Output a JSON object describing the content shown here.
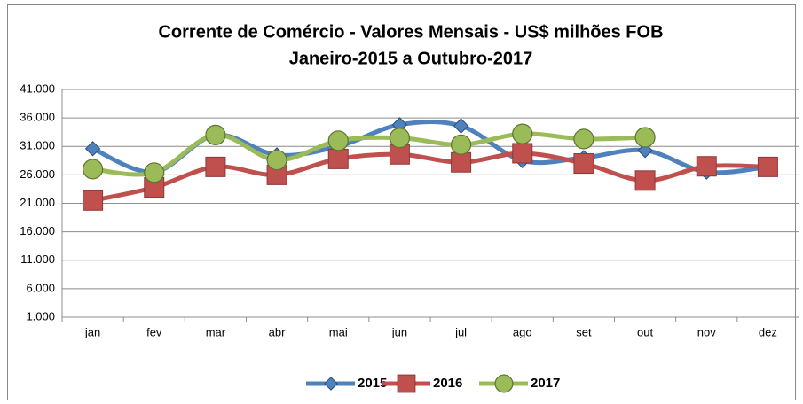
{
  "chart_data": {
    "type": "line",
    "title": "Corrente de Comércio - Valores Mensais -  US$ milhões FOB",
    "subtitle": "Janeiro-2015 a Outubro-2017",
    "categories": [
      "jan",
      "fev",
      "mar",
      "abr",
      "mai",
      "jun",
      "jul",
      "ago",
      "set",
      "out",
      "nov",
      "dez"
    ],
    "series": [
      {
        "name": "2015",
        "color": "#4f81bd",
        "marker": "diamond",
        "values": [
          30.6,
          26.5,
          33.0,
          29.5,
          31.0,
          34.8,
          34.6,
          28.5,
          29.0,
          30.3,
          26.5,
          27.4
        ]
      },
      {
        "name": "2016",
        "color": "#c0504d",
        "marker": "square",
        "values": [
          21.5,
          23.8,
          27.4,
          26.0,
          28.8,
          29.6,
          28.2,
          29.8,
          28.0,
          25.0,
          27.5,
          27.4
        ]
      },
      {
        "name": "2017",
        "color": "#9bbb59",
        "marker": "circle",
        "values": [
          27.0,
          26.4,
          33.0,
          28.6,
          32.0,
          32.5,
          31.3,
          33.2,
          32.3,
          32.6,
          null,
          null
        ]
      }
    ],
    "ylim": [
      1,
      41
    ],
    "yticks": [
      {
        "value": 1,
        "label": "1.000"
      },
      {
        "value": 6,
        "label": "6.000"
      },
      {
        "value": 11,
        "label": "11.000"
      },
      {
        "value": 16,
        "label": "16.000"
      },
      {
        "value": 21,
        "label": "21.000"
      },
      {
        "value": 26,
        "label": "26.000"
      },
      {
        "value": 31,
        "label": "31.000"
      },
      {
        "value": 36,
        "label": "36.000"
      },
      {
        "value": 41,
        "label": "41.000"
      }
    ],
    "grid": true,
    "smooth": true,
    "legend": "bottom"
  }
}
